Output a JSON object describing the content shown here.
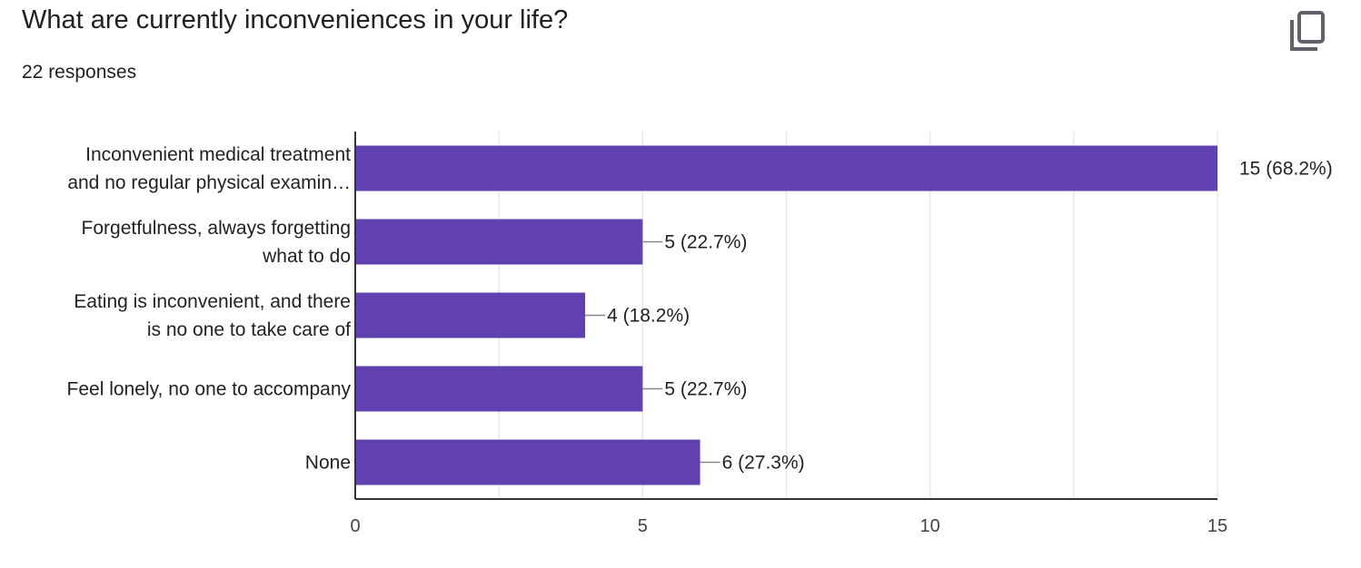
{
  "header": {
    "title": "What are currently inconveniences in your life?",
    "responses": "22 responses",
    "copy_icon": "copy-icon"
  },
  "colors": {
    "bar": "#6140B0",
    "axis": "#333333",
    "grid": "#e8e8e8",
    "leader": "#888888"
  },
  "chart_data": {
    "type": "bar",
    "orientation": "horizontal",
    "categories": [
      [
        "Inconvenient medical treatment",
        "and no regular physical examin…"
      ],
      [
        "Forgetfulness, always forgetting",
        "what to do"
      ],
      [
        "Eating is inconvenient, and there",
        "is no one to take care of"
      ],
      [
        "Feel lonely, no one to accompany"
      ],
      [
        "None"
      ]
    ],
    "values": [
      15,
      5,
      4,
      5,
      6
    ],
    "data_labels": [
      "15 (68.2%)",
      "5 (22.7%)",
      "4 (18.2%)",
      "5 (22.7%)",
      "6 (27.3%)"
    ],
    "xticks": [
      0,
      5,
      10,
      15
    ],
    "xlim": [
      0,
      15
    ],
    "grid": true
  }
}
